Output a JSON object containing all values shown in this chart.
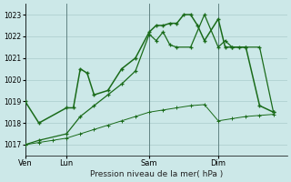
{
  "title": "Pression niveau de la mer( hPa )",
  "ylabel_values": [
    1017,
    1018,
    1019,
    1020,
    1021,
    1022,
    1023
  ],
  "ylim": [
    1016.5,
    1023.5
  ],
  "bg_color": "#cce8e8",
  "grid_color": "#aacccc",
  "line_color": "#1a6b1a",
  "x_tick_labels": [
    "Ven",
    "Lun",
    "Sam",
    "Dim"
  ],
  "x_tick_positions": [
    0,
    3,
    9,
    14
  ],
  "xlim": [
    0,
    19
  ],
  "vline_positions": [
    0,
    3,
    9,
    14
  ],
  "series1_x": [
    0,
    1,
    3,
    3.5,
    4,
    4.5,
    5,
    6,
    7,
    8,
    9,
    9.5,
    10,
    10.5,
    11,
    11.5,
    12,
    12.5,
    13,
    14,
    14.5,
    15,
    15.5,
    16,
    17,
    18
  ],
  "series1_y": [
    1019,
    1018,
    1018.7,
    1018.7,
    1020.5,
    1020.3,
    1019.3,
    1019.5,
    1020.5,
    1021,
    1022.2,
    1022.5,
    1022.5,
    1022.6,
    1022.6,
    1023.0,
    1023.0,
    1022.5,
    1021.8,
    1022.8,
    1021.5,
    1021.5,
    1021.5,
    1021.5,
    1018.8,
    1018.5
  ],
  "series2_x": [
    0,
    1,
    2,
    3,
    4,
    5,
    6,
    7,
    8,
    9,
    10,
    11,
    12,
    13,
    14,
    15,
    16,
    17,
    18
  ],
  "series2_y": [
    1017.0,
    1017.1,
    1017.2,
    1017.3,
    1017.5,
    1017.7,
    1017.9,
    1018.1,
    1018.3,
    1018.5,
    1018.6,
    1018.7,
    1018.8,
    1018.85,
    1018.1,
    1018.2,
    1018.3,
    1018.35,
    1018.4
  ],
  "series3_x": [
    0,
    1,
    3,
    4,
    5,
    6,
    7,
    8,
    9,
    9.5,
    10,
    10.5,
    11,
    12,
    13,
    14,
    14.5,
    15,
    16,
    17,
    18
  ],
  "series3_y": [
    1017.0,
    1017.2,
    1017.5,
    1018.3,
    1018.8,
    1019.3,
    1019.8,
    1020.4,
    1022.1,
    1021.8,
    1022.2,
    1021.6,
    1021.5,
    1021.5,
    1023.0,
    1021.5,
    1021.8,
    1021.5,
    1021.5,
    1021.5,
    1018.5
  ],
  "figsize": [
    3.2,
    2.0
  ],
  "dpi": 100
}
